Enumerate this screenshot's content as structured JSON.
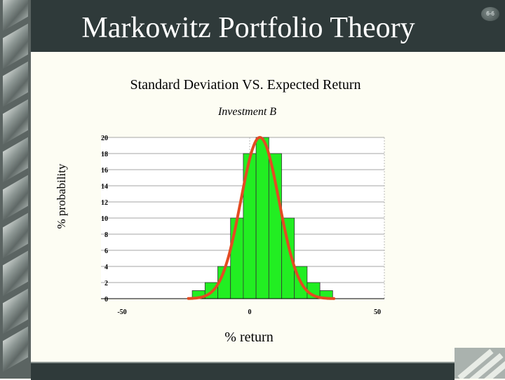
{
  "slide": {
    "title": "Markowitz Portfolio Theory",
    "slide_number": "6-6"
  },
  "colors": {
    "header": "#2f3a3a",
    "bar": "#22ee22",
    "curve": "#e34b22",
    "background": "#fdfdf3"
  },
  "chart_data": {
    "type": "bar",
    "title": "Standard Deviation VS. Expected Return",
    "subtitle": "Investment B",
    "xlabel": "% return",
    "ylabel": "% probability",
    "xlim": [
      -50,
      50
    ],
    "ylim": [
      0,
      20
    ],
    "x_ticks": [
      -50,
      0,
      50
    ],
    "y_ticks": [
      0,
      2,
      4,
      6,
      8,
      10,
      12,
      14,
      16,
      18,
      20
    ],
    "grid": true,
    "bin_width": 5,
    "x": [
      -20,
      -15,
      -10,
      -5,
      0,
      5,
      10,
      15,
      20,
      25,
      30
    ],
    "values": [
      1,
      2,
      4,
      10,
      18,
      20,
      18,
      10,
      4,
      2,
      1
    ],
    "overlay": {
      "type": "normal-curve",
      "peak": 20,
      "mean": 4,
      "sd": 7.5
    }
  }
}
